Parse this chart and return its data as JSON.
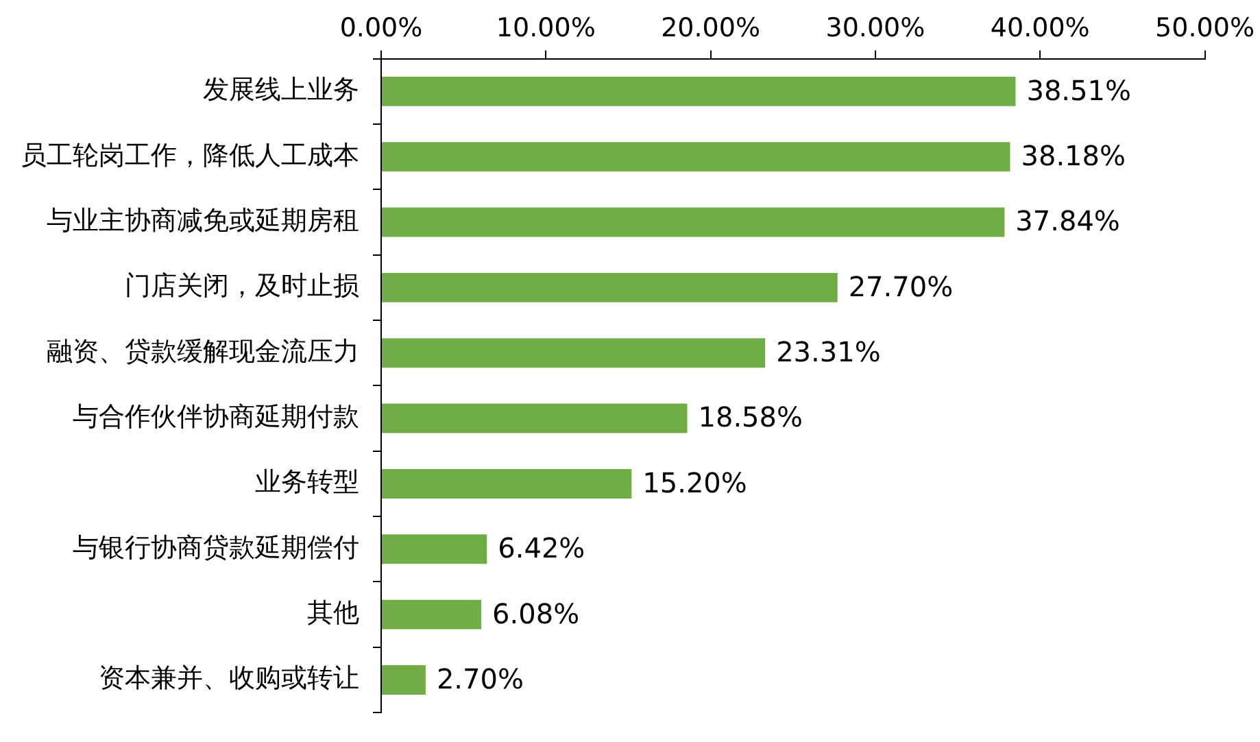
{
  "chart_data": {
    "type": "bar",
    "orientation": "horizontal",
    "categories": [
      "发展线上业务",
      "员工轮岗工作，降低人工成本",
      "与业主协商减免或延期房租",
      "门店关闭，及时止损",
      "融资、贷款缓解现金流压力",
      "与合作伙伴协商延期付款",
      "业务转型",
      "与银行协商贷款延期偿付",
      "其他",
      "资本兼并、收购或转让"
    ],
    "values": [
      38.51,
      38.18,
      37.84,
      27.7,
      23.31,
      18.58,
      15.2,
      6.42,
      6.08,
      2.7
    ],
    "value_labels": [
      "38.51%",
      "38.18%",
      "37.84%",
      "27.70%",
      "23.31%",
      "18.58%",
      "15.20%",
      "6.42%",
      "6.08%",
      "2.70%"
    ],
    "color": "#70ad47",
    "xlim": [
      0,
      50
    ],
    "xticks": [
      {
        "value": 0,
        "label": "0.00%"
      },
      {
        "value": 10,
        "label": "10.00%"
      },
      {
        "value": 20,
        "label": "20.00%"
      },
      {
        "value": 30,
        "label": "30.00%"
      },
      {
        "value": 40,
        "label": "40.00%"
      },
      {
        "value": 50,
        "label": "50.00%"
      }
    ],
    "legend": false
  }
}
